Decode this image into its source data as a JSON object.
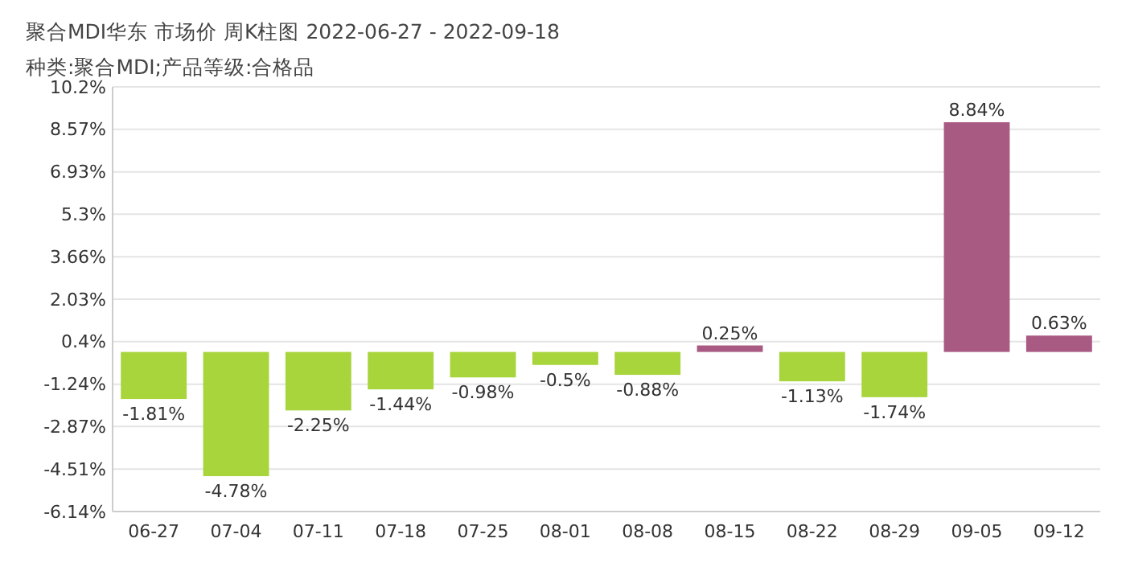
{
  "chart_data": {
    "type": "bar",
    "title": "聚合MDI华东 市场价 周K柱图 2022-06-27 - 2022-09-18",
    "subtitle": "种类:聚合MDI;产品等级:合格品",
    "categories": [
      "06-27",
      "07-04",
      "07-11",
      "07-18",
      "07-25",
      "08-01",
      "08-08",
      "08-15",
      "08-22",
      "08-29",
      "09-05",
      "09-12"
    ],
    "values": [
      -1.81,
      -4.78,
      -2.25,
      -1.44,
      -0.98,
      -0.5,
      -0.88,
      0.25,
      -1.13,
      -1.74,
      8.84,
      0.63
    ],
    "value_labels": [
      "-1.81%",
      "-4.78%",
      "-2.25%",
      "-1.44%",
      "-0.98%",
      "-0.5%",
      "-0.88%",
      "0.25%",
      "-1.13%",
      "-1.74%",
      "8.84%",
      "0.63%"
    ],
    "colors": [
      "#a8d43c",
      "#a8d43c",
      "#a8d43c",
      "#a8d43c",
      "#a8d43c",
      "#a8d43c",
      "#a8d43c",
      "#a95a82",
      "#a8d43c",
      "#a8d43c",
      "#a95a82",
      "#a95a82"
    ],
    "ylim": [
      -6.14,
      10.2
    ],
    "yticks": [
      {
        "value": -6.14,
        "label": "-6.14%"
      },
      {
        "value": -4.51,
        "label": "-4.51%"
      },
      {
        "value": -2.87,
        "label": "-2.87%"
      },
      {
        "value": -1.24,
        "label": "-1.24%"
      },
      {
        "value": 0.4,
        "label": "0.4%"
      },
      {
        "value": 2.03,
        "label": "2.03%"
      },
      {
        "value": 3.66,
        "label": "3.66%"
      },
      {
        "value": 5.3,
        "label": "5.3%"
      },
      {
        "value": 6.93,
        "label": "6.93%"
      },
      {
        "value": 8.57,
        "label": "8.57%"
      },
      {
        "value": 10.2,
        "label": "10.2%"
      }
    ],
    "grid": "y"
  }
}
